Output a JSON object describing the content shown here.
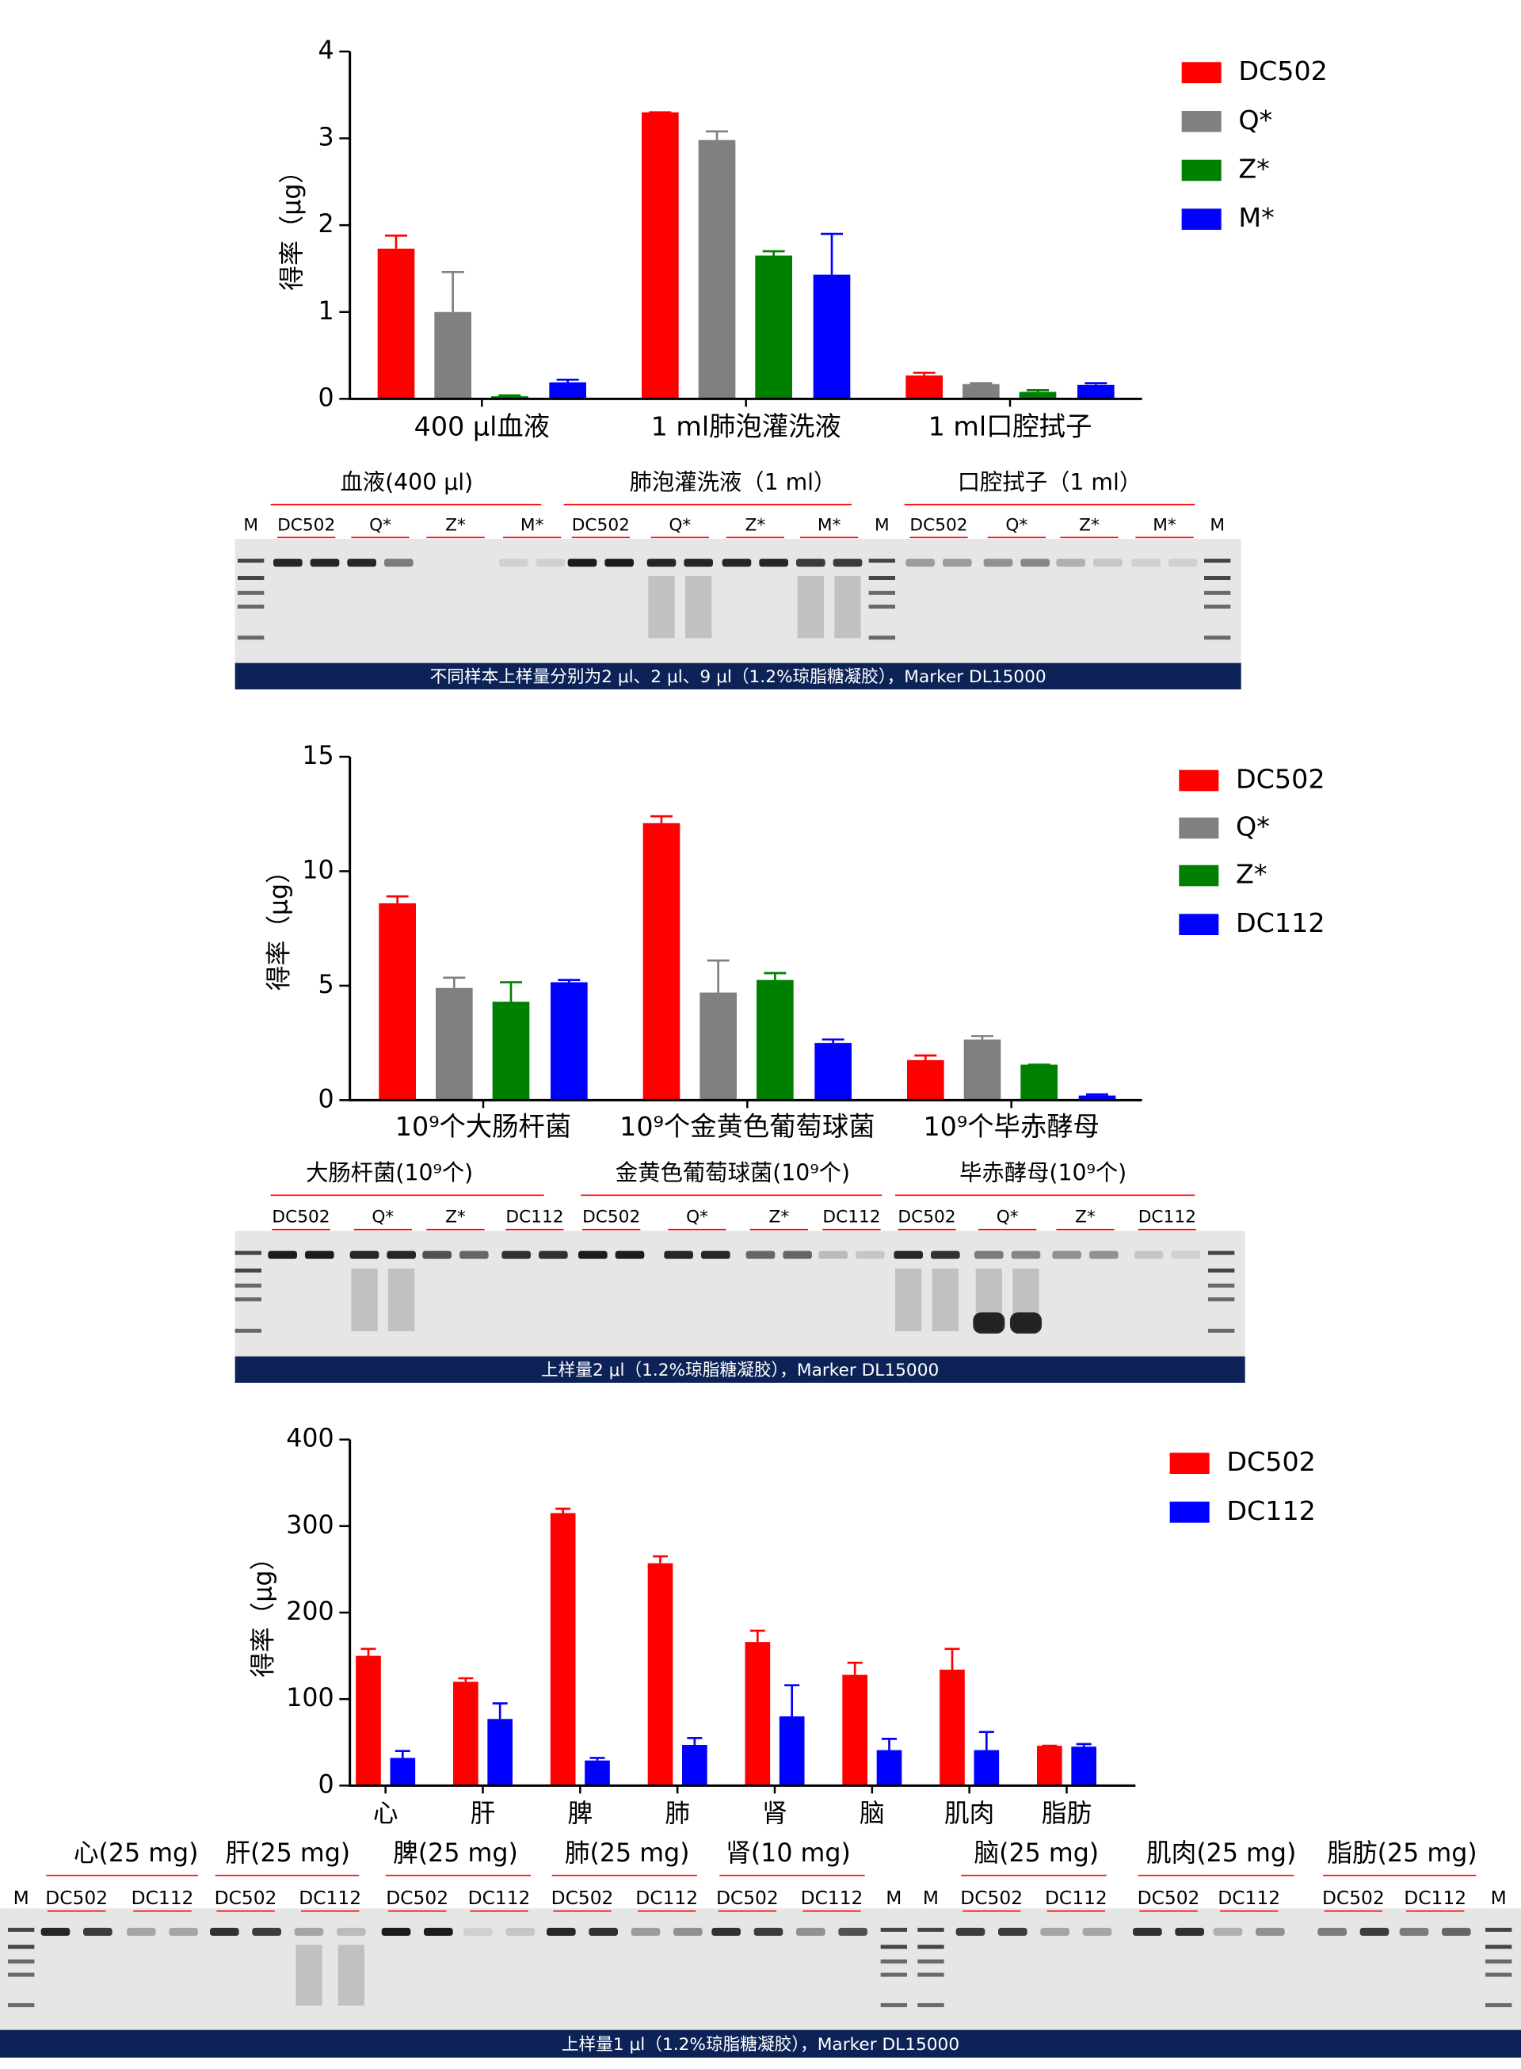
{
  "chart_data": [
    {
      "type": "bar",
      "y_label": "得率（μg）",
      "categories": [
        "400 μl血液",
        "1 ml肺泡灌洗液",
        "1 ml口腔拭子"
      ],
      "ylim": [
        0,
        4
      ],
      "yticks": [
        0,
        1,
        2,
        3,
        4
      ],
      "series": [
        {
          "name": "DC502",
          "color": "#ff0000",
          "values": [
            1.73,
            3.3,
            0.27
          ],
          "errors": [
            0.15,
            0,
            0.03
          ]
        },
        {
          "name": "Q*",
          "color": "#808080",
          "values": [
            1.0,
            2.98,
            0.17
          ],
          "errors": [
            0.46,
            0.1,
            0.01
          ]
        },
        {
          "name": "Z*",
          "color": "#008000",
          "values": [
            0.03,
            1.65,
            0.08
          ],
          "errors": [
            0.01,
            0.05,
            0.02
          ]
        },
        {
          "name": "M*",
          "color": "#0000ff",
          "values": [
            0.19,
            1.43,
            0.16
          ],
          "errors": [
            0.03,
            0.47,
            0.02
          ]
        }
      ]
    },
    {
      "type": "bar",
      "y_label": "得率（μg）",
      "categories": [
        "10⁹个大肠杆菌",
        "10⁹个金黄色葡萄球菌",
        "10⁹个毕赤酵母"
      ],
      "ylim": [
        0,
        15
      ],
      "yticks": [
        0,
        5,
        10,
        15
      ],
      "series": [
        {
          "name": "DC502",
          "color": "#ff0000",
          "values": [
            8.6,
            12.1,
            1.75
          ],
          "errors": [
            0.3,
            0.3,
            0.2
          ]
        },
        {
          "name": "Q*",
          "color": "#808080",
          "values": [
            4.9,
            4.7,
            2.65
          ],
          "errors": [
            0.45,
            1.4,
            0.15
          ]
        },
        {
          "name": "Z*",
          "color": "#008000",
          "values": [
            4.3,
            5.25,
            1.55
          ],
          "errors": [
            0.85,
            0.3,
            0
          ]
        },
        {
          "name": "DC112",
          "color": "#0000ff",
          "values": [
            5.15,
            2.5,
            0.2
          ],
          "errors": [
            0.1,
            0.15,
            0.05
          ]
        }
      ]
    },
    {
      "type": "bar",
      "y_label": "得率（μg）",
      "categories": [
        "心",
        "肝",
        "脾",
        "肺",
        "肾",
        "脑",
        "肌肉",
        "脂肪"
      ],
      "ylim": [
        0,
        400
      ],
      "yticks": [
        0,
        100,
        200,
        300,
        400
      ],
      "series": [
        {
          "name": "DC502",
          "color": "#ff0000",
          "values": [
            150,
            120,
            315,
            257,
            166,
            128,
            134,
            46
          ],
          "errors": [
            8,
            4,
            5,
            8,
            13,
            14,
            24,
            0
          ]
        },
        {
          "name": "DC112",
          "color": "#0000ff",
          "values": [
            32,
            77,
            29,
            47,
            80,
            41,
            41,
            45
          ],
          "errors": [
            8,
            18,
            3,
            8,
            36,
            13,
            21,
            3
          ]
        }
      ]
    }
  ],
  "gels": [
    {
      "marker": "M",
      "caption": "不同样本上样量分别为2 μl、2 μl、9 μl（1.2%琼脂糖凝胶），Marker DL15000",
      "groups": [
        {
          "title": "血液(400 μl)",
          "lanes": [
            "DC502",
            "Q*",
            "Z*",
            "M*"
          ]
        },
        {
          "title": "肺泡灌洗液（1 ml）",
          "lanes": [
            "DC502",
            "Q*",
            "Z*",
            "M*"
          ]
        },
        {
          "title": "口腔拭子（1 ml）",
          "lanes": [
            "DC502",
            "Q*",
            "Z*",
            "M*"
          ]
        }
      ]
    },
    {
      "caption": "上样量2 μl（1.2%琼脂糖凝胶），Marker DL15000",
      "groups": [
        {
          "title": "大肠杆菌(10⁹个)",
          "lanes": [
            "DC502",
            "Q*",
            "Z*",
            "DC112"
          ]
        },
        {
          "title": "金黄色葡萄球菌(10⁹个)",
          "lanes": [
            "DC502",
            "Q*",
            "Z*",
            "DC112"
          ]
        },
        {
          "title": "毕赤酵母(10⁹个)",
          "lanes": [
            "DC502",
            "Q*",
            "Z*",
            "DC112"
          ]
        }
      ]
    },
    {
      "marker": "M",
      "caption": "上样量1 μl（1.2%琼脂糖凝胶），Marker DL15000",
      "groups": [
        {
          "title": "心(25 mg)",
          "lanes": [
            "DC502",
            "DC112"
          ]
        },
        {
          "title": "肝(25 mg)",
          "lanes": [
            "DC502",
            "DC112"
          ]
        },
        {
          "title": "脾(25 mg)",
          "lanes": [
            "DC502",
            "DC112"
          ]
        },
        {
          "title": "肺(25 mg)",
          "lanes": [
            "DC502",
            "DC112"
          ]
        },
        {
          "title": "肾(10 mg)",
          "lanes": [
            "DC502",
            "DC112"
          ]
        },
        {
          "title": "脑(25 mg)",
          "lanes": [
            "DC502",
            "DC112"
          ]
        },
        {
          "title": "肌肉(25 mg)",
          "lanes": [
            "DC502",
            "DC112"
          ]
        },
        {
          "title": "脂肪(25 mg)",
          "lanes": [
            "DC502",
            "DC112"
          ]
        }
      ]
    }
  ]
}
